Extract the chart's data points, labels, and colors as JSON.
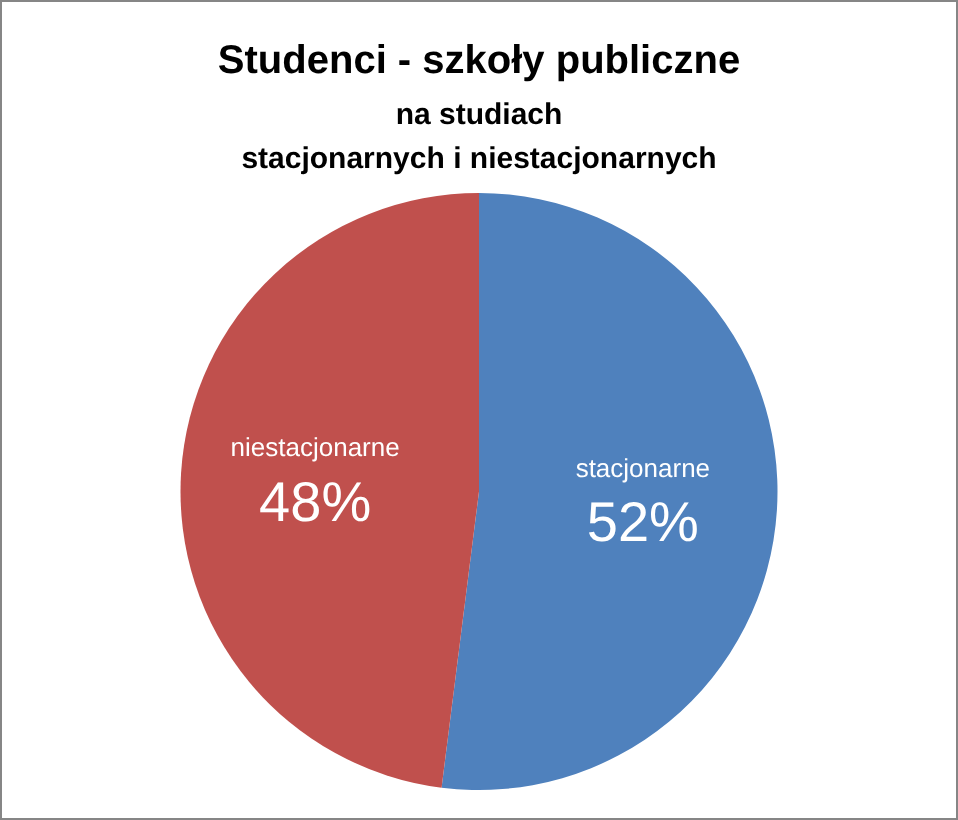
{
  "chart_data": {
    "type": "pie",
    "title": "Studenci - szkoły publiczne",
    "subtitle": "na studiach\nstacjonarnych i niestacjonarnych",
    "categories": [
      "stacjonarne",
      "niestacjonarne"
    ],
    "values": [
      52,
      48
    ],
    "colors": [
      "#4f81bd",
      "#c0504d"
    ],
    "value_labels": [
      "52%",
      "48%"
    ]
  }
}
